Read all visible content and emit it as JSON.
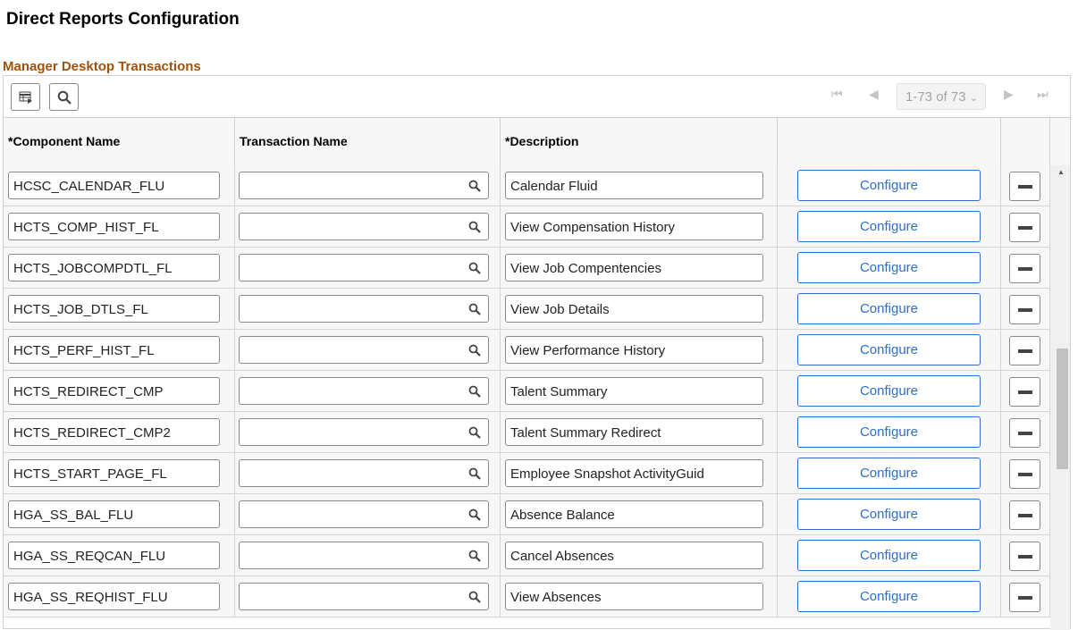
{
  "title": "Direct Reports Configuration",
  "section": "Manager Desktop Transactions",
  "pager": {
    "label": "1-73 of 73",
    "current_page_fraction": 1
  },
  "columns": [
    "*Component Name",
    "Transaction Name",
    "*Description",
    "",
    ""
  ],
  "configure_label": "Configure",
  "rows": [
    {
      "component": "HCSC_CALENDAR_FLU",
      "transaction": "",
      "description": "Calendar Fluid"
    },
    {
      "component": "HCTS_COMP_HIST_FL",
      "transaction": "",
      "description": "View Compensation History"
    },
    {
      "component": "HCTS_JOBCOMPDTL_FL",
      "transaction": "",
      "description": "View Job Compentencies"
    },
    {
      "component": "HCTS_JOB_DTLS_FL",
      "transaction": "",
      "description": "View Job Details"
    },
    {
      "component": "HCTS_PERF_HIST_FL",
      "transaction": "",
      "description": "View Performance History"
    },
    {
      "component": "HCTS_REDIRECT_CMP",
      "transaction": "",
      "description": "Talent Summary"
    },
    {
      "component": "HCTS_REDIRECT_CMP2",
      "transaction": "",
      "description": "Talent Summary Redirect"
    },
    {
      "component": "HCTS_START_PAGE_FL",
      "transaction": "",
      "description": "Employee Snapshot ActivityGuid"
    },
    {
      "component": "HGA_SS_BAL_FLU",
      "transaction": "",
      "description": "Absence Balance"
    },
    {
      "component": "HGA_SS_REQCAN_FLU",
      "transaction": "",
      "description": "Cancel Absences"
    },
    {
      "component": "HGA_SS_REQHIST_FLU",
      "transaction": "",
      "description": "View Absences"
    }
  ]
}
